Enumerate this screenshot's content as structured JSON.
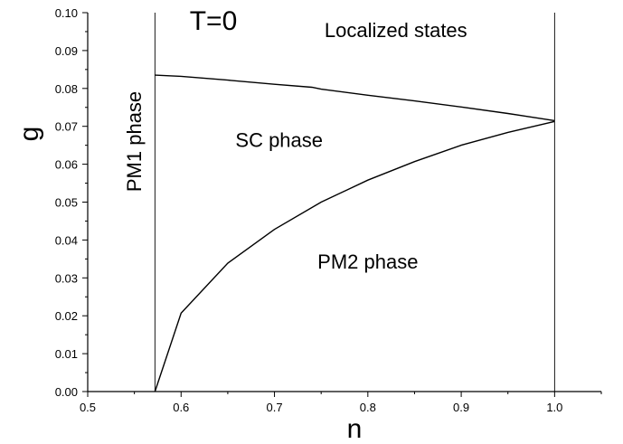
{
  "chart_data": {
    "type": "line",
    "title": "T=0",
    "xlabel": "n",
    "ylabel": "g",
    "xlim": [
      0.5,
      1.05
    ],
    "ylim": [
      0.0,
      0.1
    ],
    "x_ticks": [
      "0.5",
      "0.6",
      "0.7",
      "0.8",
      "0.9",
      "1.0"
    ],
    "y_ticks": [
      "0.00",
      "0.01",
      "0.02",
      "0.03",
      "0.04",
      "0.05",
      "0.06",
      "0.07",
      "0.08",
      "0.09",
      "0.10"
    ],
    "grid": false,
    "series": [
      {
        "x": [
          0.572,
          0.6,
          0.65,
          0.7,
          0.74,
          0.75,
          0.8,
          0.85,
          0.9,
          0.95,
          1.0
        ],
        "y": [
          0.0835,
          0.0832,
          0.0822,
          0.0811,
          0.0803,
          0.0798,
          0.0782,
          0.0767,
          0.0751,
          0.0734,
          0.0715
        ]
      },
      {
        "x": [
          0.572,
          0.6,
          0.65,
          0.7,
          0.75,
          0.8,
          0.85,
          0.9,
          0.95,
          1.0
        ],
        "y": [
          0.0,
          0.0207,
          0.0339,
          0.0428,
          0.05,
          0.0558,
          0.0607,
          0.065,
          0.0684,
          0.0713
        ]
      }
    ],
    "vertical_lines": [
      0.572,
      1.0
    ],
    "annotations": [
      {
        "text": "Localized states",
        "x": 0.83,
        "y": 0.0935
      },
      {
        "text": "SC phase",
        "x": 0.705,
        "y": 0.0645
      },
      {
        "text": "PM2 phase",
        "x": 0.8,
        "y": 0.0325
      },
      {
        "text": "PM1 phase",
        "x": 0.557,
        "y": 0.066,
        "rotation": -90
      }
    ]
  }
}
